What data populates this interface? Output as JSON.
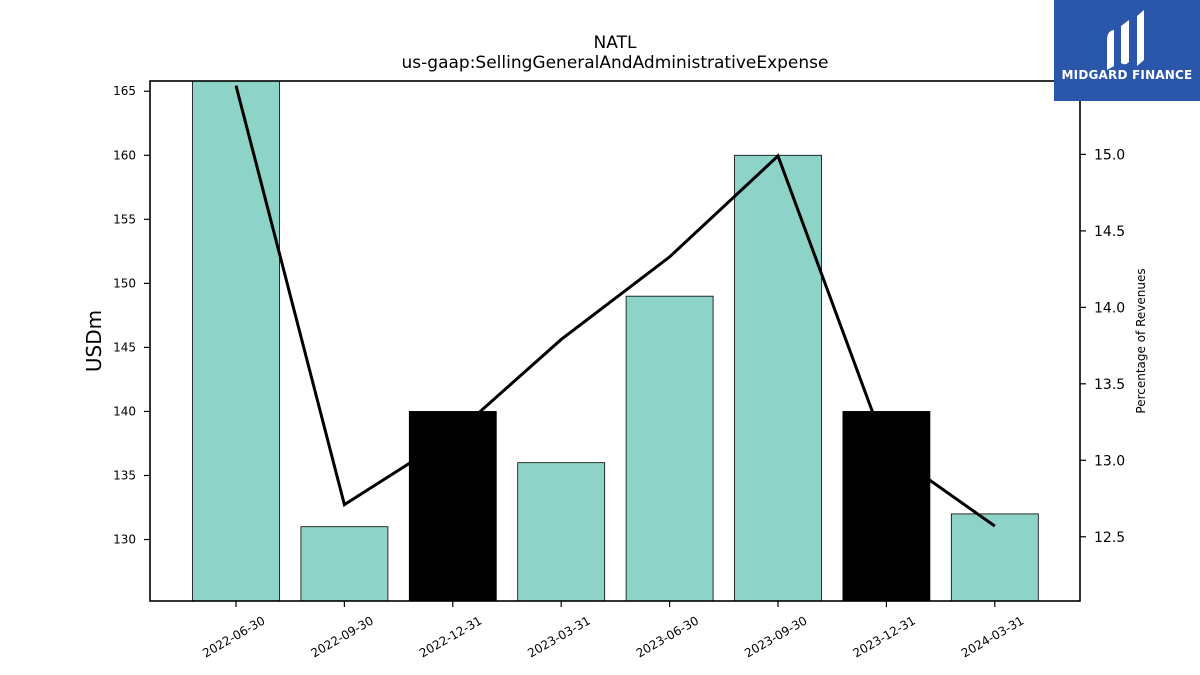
{
  "chart_data": {
    "type": "bar",
    "title": "NATL",
    "subtitle": "us-gaap:SellingGeneralAndAdministrativeExpense",
    "ylabel": "USDm",
    "y2label": "Percentage of Revenues",
    "categories": [
      "2022-06-30",
      "2022-09-30",
      "2022-12-31",
      "2023-03-31",
      "2023-06-30",
      "2023-09-30",
      "2023-12-31",
      "2024-03-31"
    ],
    "series": [
      {
        "axis": "left",
        "values": [
          166,
          131,
          140,
          136,
          149,
          160,
          140,
          132
        ],
        "bar_colors": [
          "#8dd3c7",
          "#8dd3c7",
          "#000000",
          "#8dd3c7",
          "#8dd3c7",
          "#8dd3c7",
          "#000000",
          "#8dd3c7"
        ]
      },
      {
        "type": "line",
        "axis": "right",
        "values": [
          15.45,
          12.71,
          13.16,
          13.79,
          14.33,
          14.99,
          13.07,
          12.57
        ],
        "color": "#000000"
      }
    ],
    "ylim": [
      125.2,
      165.8
    ],
    "y2lim": [
      12.08,
      15.48
    ],
    "yticks": [
      130,
      135,
      140,
      145,
      150,
      155,
      160,
      165
    ],
    "y2ticks": [
      "12.5",
      "13.0",
      "13.5",
      "14.0",
      "14.5",
      "15.0"
    ],
    "grid": false
  },
  "logo": {
    "text": "MIDGARD FINANCE",
    "background": "#2b57ab"
  }
}
